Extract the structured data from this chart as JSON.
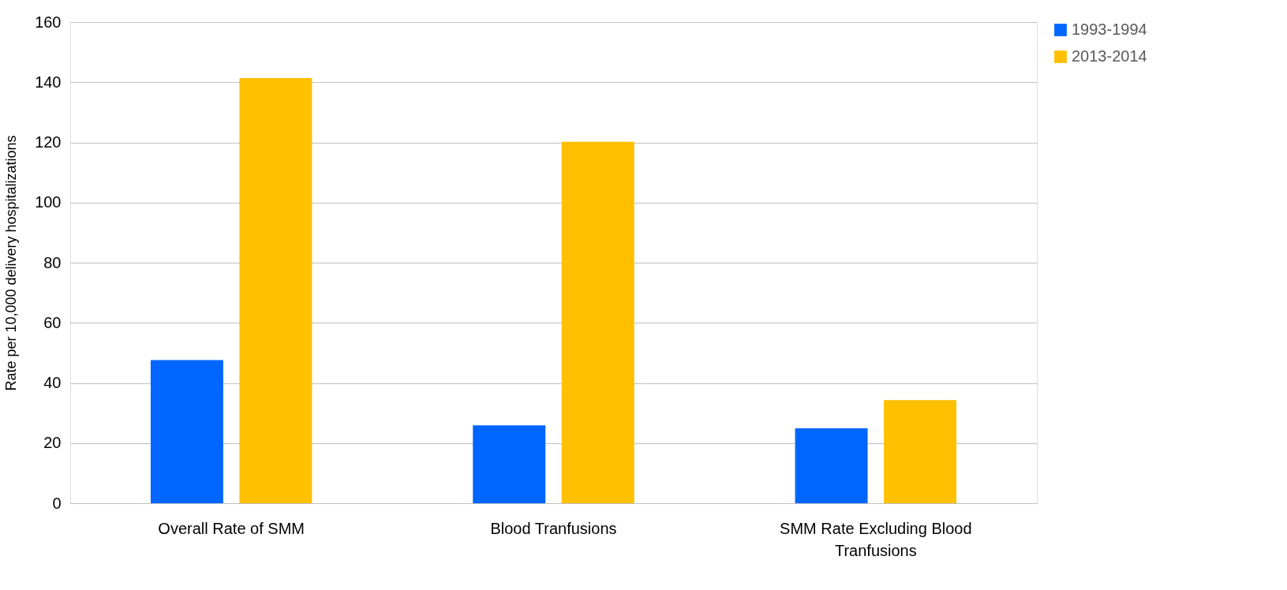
{
  "chart_data": {
    "type": "bar",
    "ylabel": "Rate per 10,000 delivery hospitalizations",
    "categories": [
      "Overall Rate of SMM",
      "Blood Tranfusions",
      "SMM Rate Excluding Blood Tranfusions"
    ],
    "series": [
      {
        "name": "1993-1994",
        "color": "#0066ff",
        "values": [
          47.6,
          25.9,
          24.9
        ]
      },
      {
        "name": "2013-2014",
        "color": "#ffc000",
        "values": [
          141.4,
          120.2,
          34.3
        ]
      }
    ],
    "ylim": [
      0,
      160
    ],
    "yticks": [
      0,
      20,
      40,
      60,
      80,
      100,
      120,
      140,
      160
    ],
    "grid": "y",
    "legend": "right"
  }
}
